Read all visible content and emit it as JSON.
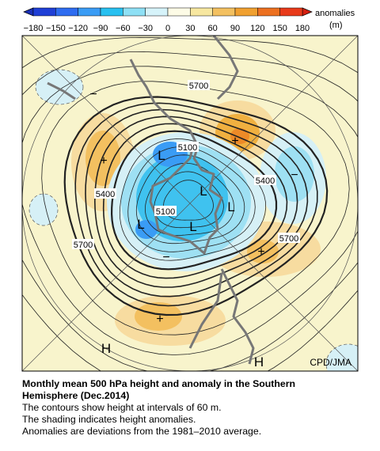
{
  "colorbar": {
    "ticks": [
      "−180",
      "−150",
      "−120",
      "−90",
      "−60",
      "−30",
      "0",
      "30",
      "60",
      "90",
      "120",
      "150",
      "180"
    ],
    "title": "anomalies",
    "unit": "(m)"
  },
  "map": {
    "contour_labels": [
      "5700",
      "5100",
      "5400",
      "5400",
      "5100",
      "5700",
      "5700"
    ],
    "markers": [
      "−",
      "+",
      "L",
      "+",
      "−",
      "L",
      "L",
      "L",
      "L",
      "−",
      "+",
      "+",
      "H",
      "H"
    ],
    "credit": "CPD/JMA"
  },
  "caption": {
    "title": "Monthly mean 500 hPa height and anomaly in the Southern Hemisphere (Dec.2014)",
    "lines": [
      "The contours show height at intervals of 60 m.",
      "The shading indicates height anomalies.",
      "Anomalies are deviations from the 1981–2010 average."
    ]
  }
}
